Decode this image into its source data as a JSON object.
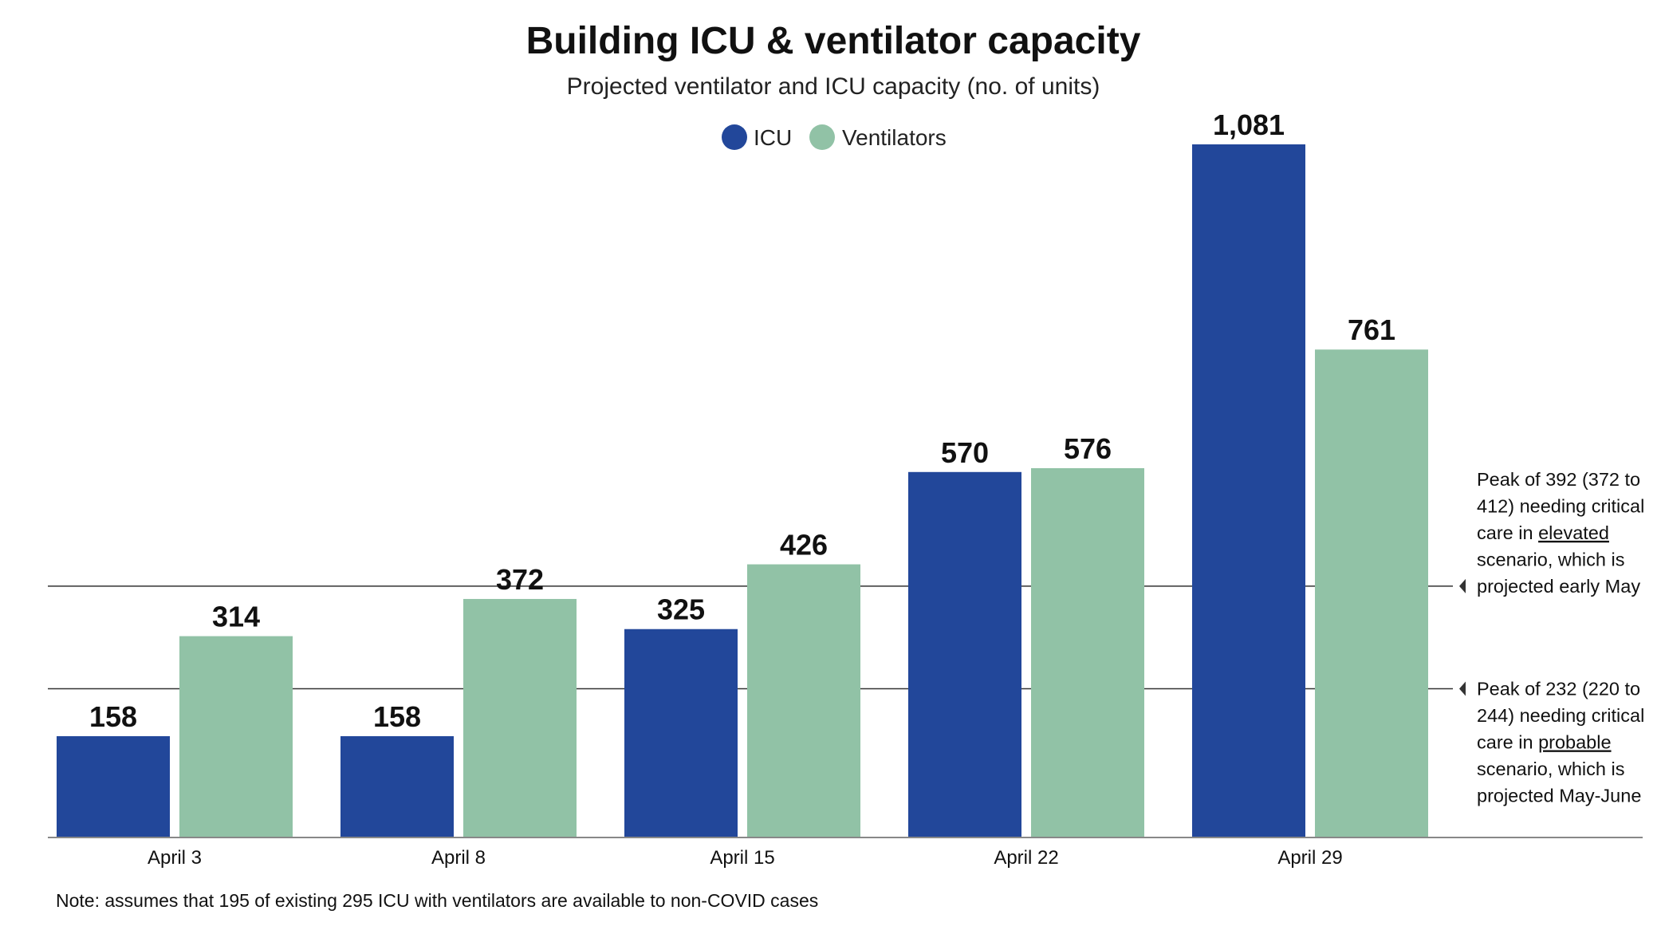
{
  "colors": {
    "icu": "#22479a",
    "ventilators": "#91c2a6",
    "axis": "#888888",
    "reference_line": "#333333"
  },
  "chart_data": {
    "type": "bar",
    "title": "Building ICU & ventilator capacity",
    "subtitle": "Projected ventilator and ICU capacity (no. of units)",
    "xlabel": "",
    "ylabel": "",
    "categories": [
      "April 3",
      "April 8",
      "April 15",
      "April 22",
      "April 29"
    ],
    "series": [
      {
        "name": "ICU",
        "color": "#22479a",
        "values": [
          158,
          158,
          325,
          570,
          1081
        ],
        "labels": [
          "158",
          "158",
          "325",
          "570",
          "1,081"
        ]
      },
      {
        "name": "Ventilators",
        "color": "#91c2a6",
        "values": [
          314,
          372,
          426,
          576,
          761
        ],
        "labels": [
          "314",
          "372",
          "426",
          "576",
          "761"
        ]
      }
    ],
    "ylim": [
      0,
      1081
    ],
    "grid": false,
    "legend_position": "top-center",
    "reference_lines": [
      {
        "value": 392,
        "lines": [
          "Peak of 392 (372 to",
          "412) needing critical",
          "care in ",
          "scenario, which is",
          "projected early May"
        ],
        "emphasis": "elevated"
      },
      {
        "value": 232,
        "lines": [
          "Peak of 232 (220 to",
          "244) needing critical",
          "care in ",
          "scenario, which is",
          "projected May-June"
        ],
        "emphasis": "probable"
      }
    ]
  },
  "note": "Note: assumes that 195 of existing 295 ICU with ventilators are available to non-COVID cases"
}
